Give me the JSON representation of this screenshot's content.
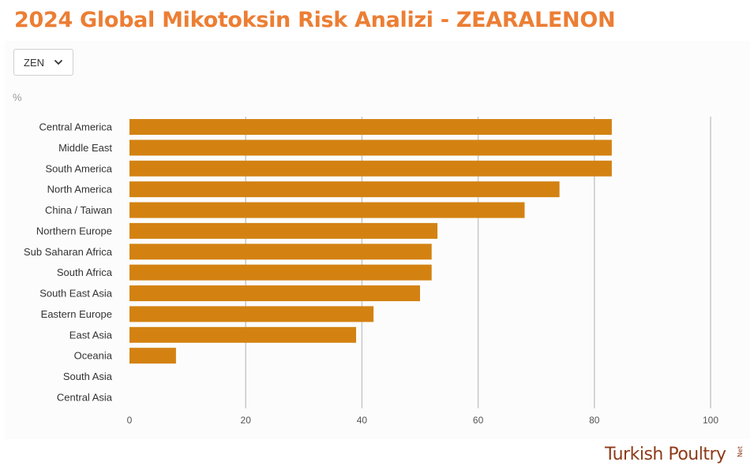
{
  "page": {
    "title": "2024 Global Mikotoksin Risk Analizi  - ZEARALENON",
    "filter": {
      "selected": "ZEN",
      "icon": "chevron-down-icon"
    },
    "unit_label": "%",
    "logo_text": "Turkish Poultry",
    "logo_suffix": "Net"
  },
  "colors": {
    "title": "#ec7e34",
    "bar": "#d38212",
    "grid": "#c8c8c8",
    "logo": "#8e3a17"
  },
  "chart_data": {
    "type": "bar",
    "orientation": "horizontal",
    "categories": [
      "Central America",
      "Middle East",
      "South America",
      "North America",
      "China / Taiwan",
      "Northern Europe",
      "Sub Saharan Africa",
      "South Africa",
      "South East Asia",
      "Eastern Europe",
      "East Asia",
      "Oceania",
      "South Asia",
      "Central Asia"
    ],
    "values": [
      83,
      83,
      83,
      74,
      68,
      53,
      52,
      52,
      50,
      42,
      39,
      8,
      0,
      0
    ],
    "xlim": [
      0,
      100
    ],
    "xticks": [
      0,
      20,
      40,
      60,
      80,
      100
    ],
    "grid": "vertical",
    "legend": "none"
  }
}
